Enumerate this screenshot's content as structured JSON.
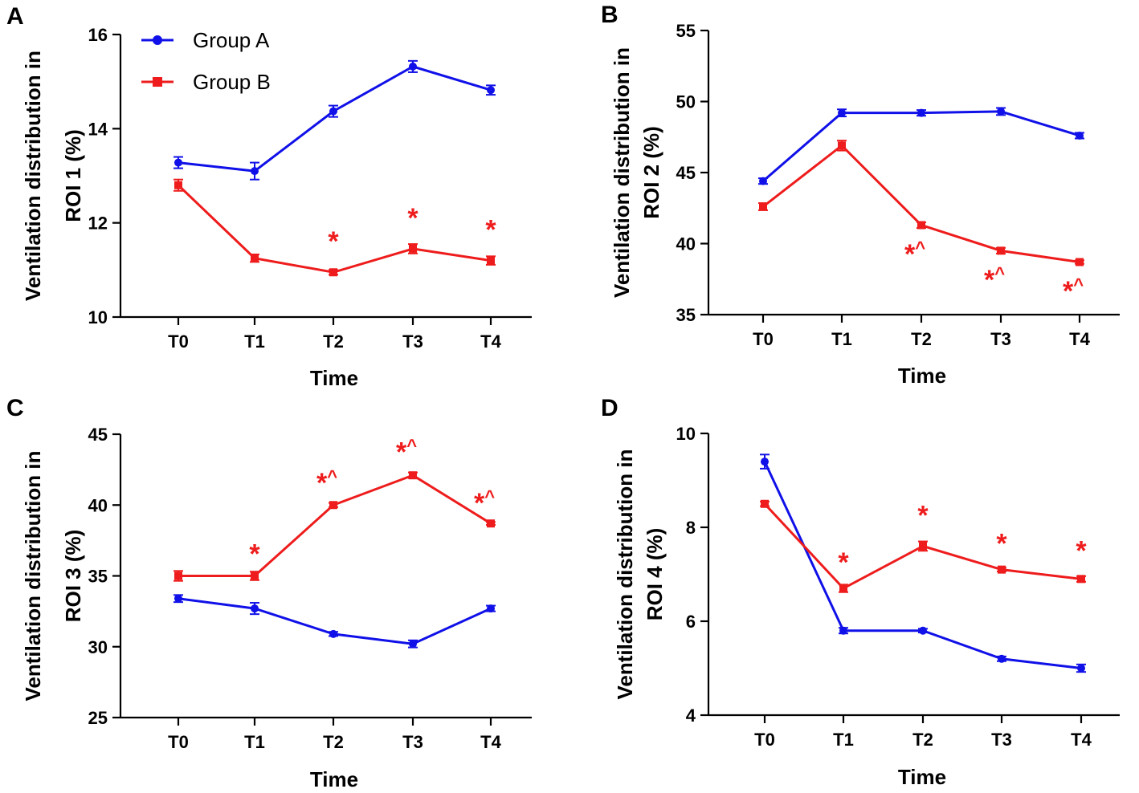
{
  "legend": [
    {
      "name": "Group A",
      "color": "#1010e8",
      "marker": "circle"
    },
    {
      "name": "Group B",
      "color": "#ee1c1c",
      "marker": "square"
    }
  ],
  "chart_data": [
    {
      "panel": "A",
      "type": "line",
      "title": "",
      "xlabel": "Time",
      "ylabel_lines": [
        "Ventilation distribution in",
        "ROI 1 (%)"
      ],
      "categories": [
        "T0",
        "T1",
        "T2",
        "T3",
        "T4"
      ],
      "ylim": [
        10,
        16
      ],
      "yticks": [
        10,
        12,
        14,
        16
      ],
      "series": [
        {
          "name": "Group A",
          "values": [
            13.28,
            13.1,
            14.37,
            15.32,
            14.82
          ],
          "errors": [
            0.12,
            0.18,
            0.12,
            0.12,
            0.1
          ]
        },
        {
          "name": "Group B",
          "values": [
            12.8,
            11.25,
            10.95,
            11.45,
            11.2
          ],
          "errors": [
            0.12,
            0.08,
            0.05,
            0.1,
            0.09
          ]
        }
      ],
      "annotations": [
        {
          "category": "T2",
          "value": 11.65,
          "text": "*"
        },
        {
          "category": "T3",
          "value": 12.15,
          "text": "*"
        },
        {
          "category": "T4",
          "value": 11.9,
          "text": "*"
        }
      ]
    },
    {
      "panel": "B",
      "type": "line",
      "title": "",
      "xlabel": "Time",
      "ylabel_lines": [
        "Ventilation distribution in",
        "ROI 2 (%)"
      ],
      "categories": [
        "T0",
        "T1",
        "T2",
        "T3",
        "T4"
      ],
      "ylim": [
        35,
        55
      ],
      "yticks": [
        35,
        40,
        45,
        50,
        55
      ],
      "series": [
        {
          "name": "Group A",
          "values": [
            44.4,
            49.2,
            49.2,
            49.3,
            47.6
          ],
          "errors": [
            0.2,
            0.25,
            0.2,
            0.25,
            0.2
          ]
        },
        {
          "name": "Group B",
          "values": [
            42.6,
            46.9,
            41.3,
            39.5,
            38.7
          ],
          "errors": [
            0.25,
            0.35,
            0.2,
            0.2,
            0.12
          ]
        }
      ],
      "annotations": [
        {
          "category": "T2",
          "value": 39.4,
          "text": "*^"
        },
        {
          "category": "T3",
          "value": 37.6,
          "text": "*^"
        },
        {
          "category": "T4",
          "value": 36.8,
          "text": "*^"
        }
      ]
    },
    {
      "panel": "C",
      "type": "line",
      "title": "",
      "xlabel": "Time",
      "ylabel_lines": [
        "Ventilation distribution in",
        "ROI 3 (%)"
      ],
      "categories": [
        "T0",
        "T1",
        "T2",
        "T3",
        "T4"
      ],
      "ylim": [
        25,
        45
      ],
      "yticks": [
        25,
        30,
        35,
        40,
        45
      ],
      "series": [
        {
          "name": "Group A",
          "values": [
            33.4,
            32.7,
            30.9,
            30.2,
            32.7
          ],
          "errors": [
            0.25,
            0.4,
            0.15,
            0.25,
            0.2
          ]
        },
        {
          "name": "Group B",
          "values": [
            35.0,
            35.0,
            40.0,
            42.1,
            38.7
          ],
          "errors": [
            0.35,
            0.3,
            0.15,
            0.2,
            0.1
          ]
        }
      ],
      "annotations": [
        {
          "category": "T1",
          "value": 36.7,
          "text": "*"
        },
        {
          "category": "T2",
          "value": 41.7,
          "text": "*^"
        },
        {
          "category": "T3",
          "value": 43.9,
          "text": "*^"
        },
        {
          "category": "T4",
          "value": 40.3,
          "text": "*^"
        }
      ]
    },
    {
      "panel": "D",
      "type": "line",
      "title": "",
      "xlabel": "Time",
      "ylabel_lines": [
        "Ventilation distribution in",
        "ROI 4 (%)"
      ],
      "categories": [
        "T0",
        "T1",
        "T2",
        "T3",
        "T4"
      ],
      "ylim": [
        4,
        10
      ],
      "yticks": [
        4,
        6,
        8,
        10
      ],
      "series": [
        {
          "name": "Group A",
          "values": [
            9.4,
            5.8,
            5.8,
            5.2,
            5.0
          ],
          "errors": [
            0.15,
            0.06,
            0.04,
            0.05,
            0.08
          ]
        },
        {
          "name": "Group B",
          "values": [
            8.5,
            6.7,
            7.6,
            7.1,
            6.9
          ],
          "errors": [
            0.05,
            0.08,
            0.1,
            0.04,
            0.06
          ]
        }
      ],
      "annotations": [
        {
          "category": "T1",
          "value": 7.3,
          "text": "*"
        },
        {
          "category": "T2",
          "value": 8.3,
          "text": "*"
        },
        {
          "category": "T3",
          "value": 7.7,
          "text": "*"
        },
        {
          "category": "T4",
          "value": 7.55,
          "text": "*"
        }
      ]
    }
  ]
}
